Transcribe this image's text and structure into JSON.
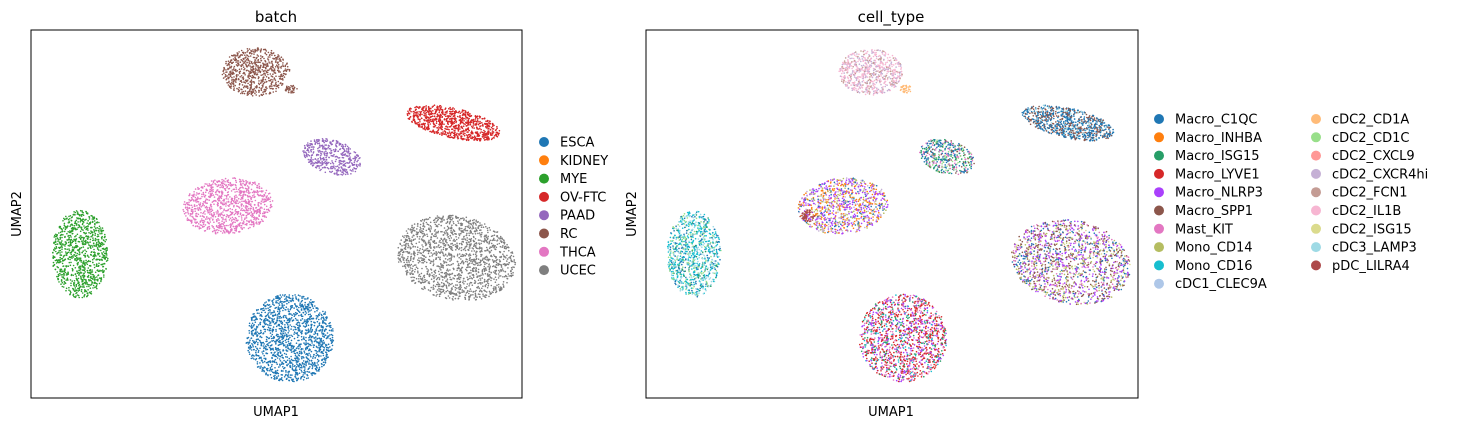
{
  "chart_data": [
    {
      "type": "scatter",
      "title": "batch",
      "xlabel": "UMAP1",
      "ylabel": "UMAP2",
      "grid": false,
      "legend_position": "right",
      "legend_columns": 1,
      "series": [
        {
          "name": "ESCA",
          "color": "#1f77b4"
        },
        {
          "name": "KIDNEY",
          "color": "#ff7f0e"
        },
        {
          "name": "MYE",
          "color": "#2ca02c"
        },
        {
          "name": "OV-FTC",
          "color": "#d62728"
        },
        {
          "name": "PAAD",
          "color": "#9467bd"
        },
        {
          "name": "RC",
          "color": "#8c564b"
        },
        {
          "name": "THCA",
          "color": "#e377c2"
        },
        {
          "name": "UCEC",
          "color": "#7f7f7f"
        }
      ]
    },
    {
      "type": "scatter",
      "title": "cell_type",
      "xlabel": "UMAP1",
      "ylabel": "UMAP2",
      "grid": false,
      "legend_position": "right",
      "legend_columns": 2,
      "series": [
        {
          "name": "Macro_C1QC",
          "color": "#1f77b4"
        },
        {
          "name": "Macro_INHBA",
          "color": "#ff7f0e"
        },
        {
          "name": "Macro_ISG15",
          "color": "#279e68"
        },
        {
          "name": "Macro_LYVE1",
          "color": "#d62728"
        },
        {
          "name": "Macro_NLRP3",
          "color": "#aa40fc"
        },
        {
          "name": "Macro_SPP1",
          "color": "#8c564b"
        },
        {
          "name": "Mast_KIT",
          "color": "#e377c2"
        },
        {
          "name": "Mono_CD14",
          "color": "#b5bd61"
        },
        {
          "name": "Mono_CD16",
          "color": "#17becf"
        },
        {
          "name": "cDC1_CLEC9A",
          "color": "#aec7e8"
        },
        {
          "name": "cDC2_CD1A",
          "color": "#ffbb78"
        },
        {
          "name": "cDC2_CD1C",
          "color": "#98df8a"
        },
        {
          "name": "cDC2_CXCL9",
          "color": "#ff9896"
        },
        {
          "name": "cDC2_CXCR4hi",
          "color": "#c5b0d5"
        },
        {
          "name": "cDC2_FCN1",
          "color": "#c49c94"
        },
        {
          "name": "cDC2_IL1B",
          "color": "#f7b6d2"
        },
        {
          "name": "cDC2_ISG15",
          "color": "#dbdb8d"
        },
        {
          "name": "cDC3_LAMP3",
          "color": "#9edae5"
        },
        {
          "name": "pDC_LILRA4",
          "color": "#ad494a"
        }
      ]
    }
  ]
}
